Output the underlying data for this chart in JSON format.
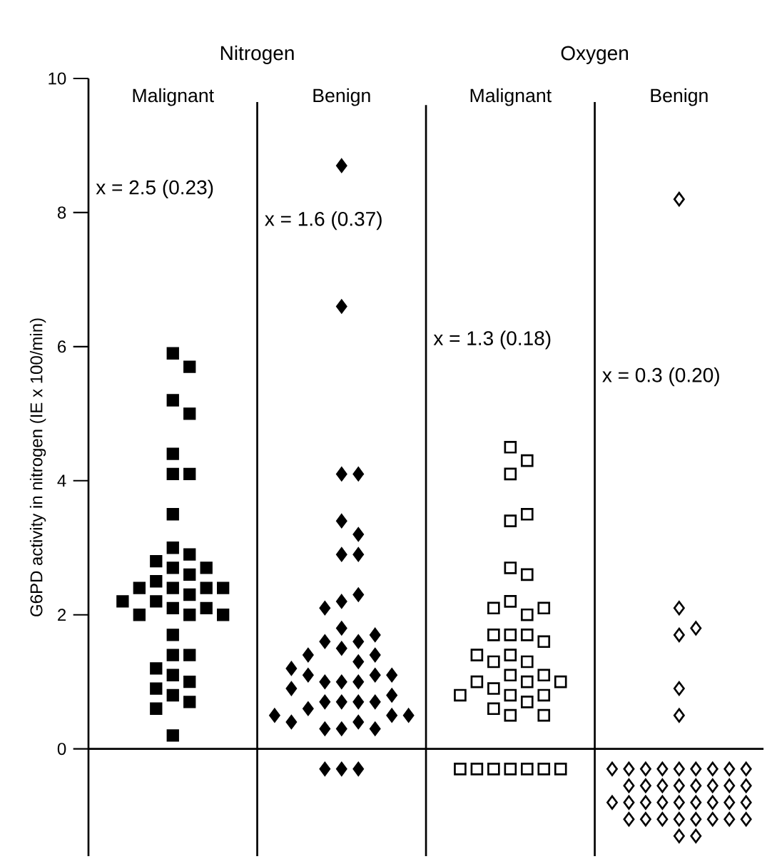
{
  "chart_data": [
    {
      "type": "scatter",
      "title": "Nitrogen",
      "ylabel": "G6PD activity in nitrogen (IE x 100/min)",
      "categories": [
        "Malignant",
        "Benign"
      ],
      "ylim": [
        -1.6,
        10
      ],
      "yticks": [
        0,
        2,
        4,
        6,
        8,
        10
      ],
      "grid": false,
      "annotations": [
        "x = 2.5 (0.23)",
        "x = 1.6 (0.37)"
      ],
      "ref_lines": [
        {
          "axis": "y",
          "value": 0
        }
      ],
      "series": [
        {
          "color": "#000000",
          "marker": "square",
          "x": [
            "Malignant",
            "Malignant",
            "Malignant",
            "Malignant",
            "Malignant",
            "Malignant",
            "Malignant",
            "Malignant",
            "Malignant",
            "Malignant",
            "Malignant",
            "Malignant",
            "Malignant",
            "Malignant",
            "Malignant",
            "Malignant",
            "Malignant",
            "Malignant",
            "Malignant",
            "Malignant",
            "Malignant",
            "Malignant",
            "Malignant",
            "Malignant",
            "Malignant",
            "Malignant",
            "Malignant",
            "Malignant",
            "Malignant",
            "Malignant",
            "Malignant",
            "Malignant",
            "Malignant",
            "Malignant",
            "Malignant",
            "Malignant",
            "Malignant",
            "Malignant"
          ],
          "values": [
            5.9,
            5.7,
            5.2,
            5.0,
            4.4,
            4.1,
            4.1,
            3.5,
            3.0,
            2.9,
            2.8,
            2.7,
            2.7,
            2.6,
            2.5,
            2.4,
            2.4,
            2.4,
            2.4,
            2.3,
            2.2,
            2.2,
            2.1,
            2.1,
            2.0,
            2.0,
            2.0,
            1.7,
            1.4,
            1.4,
            1.2,
            1.1,
            1.0,
            0.9,
            0.8,
            0.7,
            0.6,
            0.2
          ]
        },
        {
          "color": "#000000",
          "marker": "diamond",
          "x": [
            "Benign",
            "Benign",
            "Benign",
            "Benign",
            "Benign",
            "Benign",
            "Benign",
            "Benign",
            "Benign",
            "Benign",
            "Benign",
            "Benign",
            "Benign",
            "Benign",
            "Benign",
            "Benign",
            "Benign",
            "Benign",
            "Benign",
            "Benign",
            "Benign",
            "Benign",
            "Benign",
            "Benign",
            "Benign",
            "Benign",
            "Benign",
            "Benign",
            "Benign",
            "Benign",
            "Benign",
            "Benign",
            "Benign",
            "Benign",
            "Benign",
            "Benign",
            "Benign",
            "Benign",
            "Benign",
            "Benign",
            "Benign",
            "Benign",
            "Benign",
            "Benign"
          ],
          "values": [
            8.7,
            6.6,
            4.1,
            4.1,
            3.4,
            3.2,
            2.9,
            2.9,
            2.2,
            2.3,
            2.1,
            1.8,
            1.6,
            1.5,
            1.6,
            1.7,
            1.4,
            1.3,
            1.4,
            1.0,
            1.0,
            1.0,
            1.1,
            1.1,
            1.1,
            1.2,
            0.9,
            0.7,
            0.7,
            0.7,
            0.7,
            0.6,
            0.8,
            0.3,
            0.4,
            0.3,
            0.5,
            0.3,
            0.4,
            0.5,
            0.5,
            -0.3,
            -0.3,
            -0.3
          ]
        }
      ]
    },
    {
      "type": "scatter",
      "title": "Oxygen",
      "categories": [
        "Malignant",
        "Benign"
      ],
      "ylim": [
        -1.6,
        10
      ],
      "yticks": [
        0,
        2,
        4,
        6,
        8,
        10
      ],
      "tick_labels": "x",
      "grid": false,
      "annotations": [
        "x = 1.3 (0.18)",
        "x = 0.3 (0.20)"
      ],
      "ref_lines": [
        {
          "axis": "y",
          "value": 0
        }
      ],
      "series": [
        {
          "color": "#000000",
          "marker": "square",
          "x": [
            "Malignant",
            "Malignant",
            "Malignant",
            "Malignant",
            "Malignant",
            "Malignant",
            "Malignant",
            "Malignant",
            "Malignant",
            "Malignant",
            "Malignant",
            "Malignant",
            "Malignant",
            "Malignant",
            "Malignant",
            "Malignant",
            "Malignant",
            "Malignant",
            "Malignant",
            "Malignant",
            "Malignant",
            "Malignant",
            "Malignant",
            "Malignant",
            "Malignant",
            "Malignant",
            "Malignant",
            "Malignant",
            "Malignant",
            "Malignant",
            "Malignant",
            "Malignant",
            "Malignant",
            "Malignant",
            "Malignant",
            "Malignant",
            "Malignant",
            "Malignant",
            "Malignant"
          ],
          "values": [
            4.5,
            4.3,
            4.1,
            3.4,
            3.5,
            2.7,
            2.6,
            2.2,
            2.0,
            2.1,
            2.1,
            1.7,
            1.7,
            1.7,
            1.6,
            1.4,
            1.3,
            1.3,
            1.4,
            1.1,
            1.0,
            1.1,
            0.9,
            1.0,
            1.0,
            0.8,
            0.7,
            0.8,
            0.8,
            0.6,
            0.5,
            0.5,
            -0.3,
            -0.3,
            -0.3,
            -0.3,
            -0.3,
            -0.3,
            -0.3
          ]
        },
        {
          "color": "#000000",
          "marker": "diamond",
          "x": [
            "Benign",
            "Benign",
            "Benign",
            "Benign",
            "Benign",
            "Benign",
            "Benign",
            "Benign",
            "Benign",
            "Benign",
            "Benign",
            "Benign",
            "Benign",
            "Benign",
            "Benign",
            "Benign",
            "Benign",
            "Benign",
            "Benign",
            "Benign",
            "Benign",
            "Benign",
            "Benign",
            "Benign",
            "Benign",
            "Benign",
            "Benign",
            "Benign",
            "Benign",
            "Benign",
            "Benign",
            "Benign",
            "Benign",
            "Benign",
            "Benign",
            "Benign",
            "Benign",
            "Benign",
            "Benign",
            "Benign",
            "Benign",
            "Benign"
          ],
          "values": [
            8.2,
            2.1,
            1.7,
            1.8,
            0.9,
            0.5,
            -0.3,
            -0.3,
            -0.3,
            -0.3,
            -0.3,
            -0.3,
            -0.3,
            -0.3,
            -0.3,
            -0.55,
            -0.55,
            -0.55,
            -0.55,
            -0.55,
            -0.55,
            -0.55,
            -0.55,
            -0.8,
            -0.8,
            -0.8,
            -0.8,
            -0.8,
            -0.8,
            -0.8,
            -0.8,
            -0.8,
            -1.05,
            -1.05,
            -1.05,
            -1.05,
            -1.05,
            -1.05,
            -1.05,
            -1.05,
            -1.3,
            -1.3
          ]
        }
      ]
    }
  ]
}
